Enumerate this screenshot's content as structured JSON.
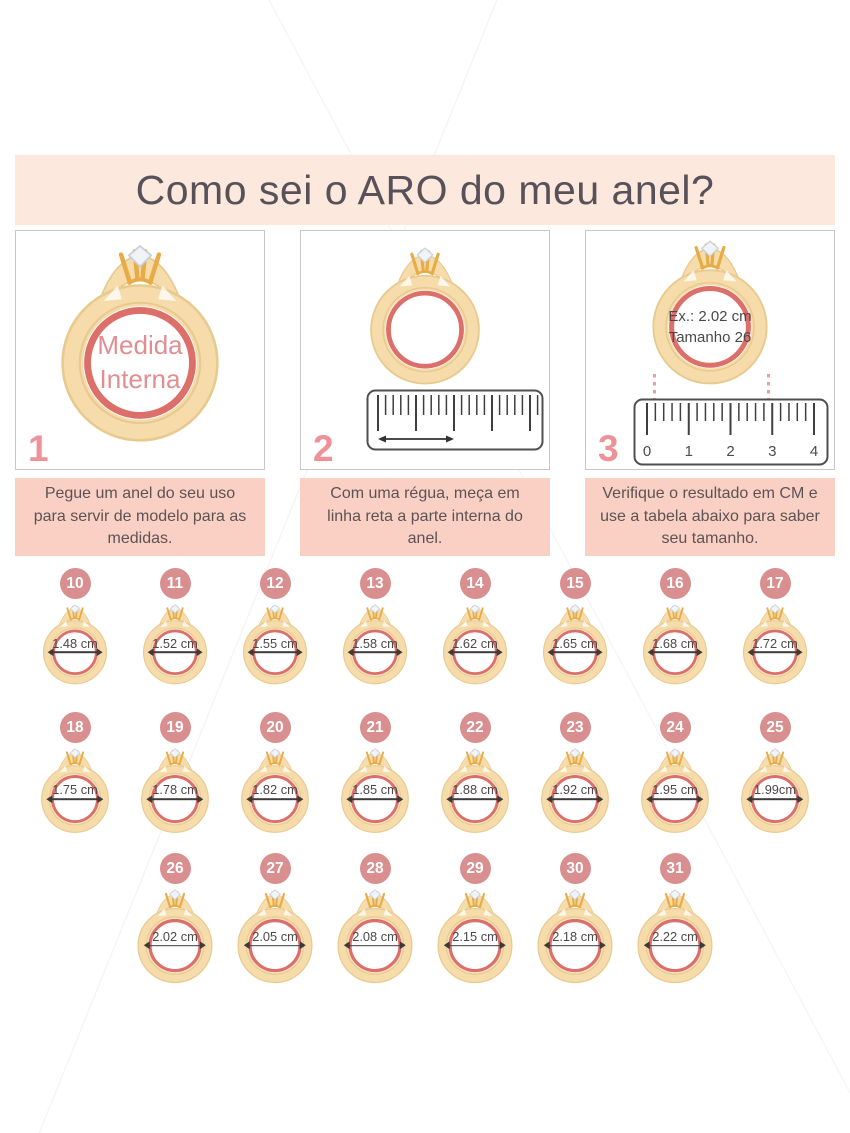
{
  "title": "Como sei o ARO do meu anel?",
  "steps": [
    {
      "number": "1",
      "ring_text": [
        "Medida",
        "Interna"
      ],
      "instruction": "Pegue um anel do seu uso para servir de modelo para as medidas."
    },
    {
      "number": "2",
      "instruction": "Com uma régua, meça em linha reta a parte interna do anel."
    },
    {
      "number": "3",
      "ring_text": [
        "Ex.: 2.02 cm",
        "Tamanho 26"
      ],
      "ruler_numbers": [
        "0",
        "1",
        "2",
        "3",
        "4"
      ],
      "instruction": "Verifique o resultado em CM e use a tabela abaixo para saber seu tamanho."
    }
  ],
  "size_chart": {
    "rows": [
      [
        {
          "size": "10",
          "diameter": "1.48 cm"
        },
        {
          "size": "11",
          "diameter": "1.52 cm"
        },
        {
          "size": "12",
          "diameter": "1.55 cm"
        },
        {
          "size": "13",
          "diameter": "1.58 cm"
        },
        {
          "size": "14",
          "diameter": "1.62 cm"
        },
        {
          "size": "15",
          "diameter": "1.65 cm"
        },
        {
          "size": "16",
          "diameter": "1.68 cm"
        },
        {
          "size": "17",
          "diameter": "1.72 cm"
        }
      ],
      [
        {
          "size": "18",
          "diameter": "1.75 cm"
        },
        {
          "size": "19",
          "diameter": "1.78 cm"
        },
        {
          "size": "20",
          "diameter": "1.82 cm"
        },
        {
          "size": "21",
          "diameter": "1.85 cm"
        },
        {
          "size": "22",
          "diameter": "1.88 cm"
        },
        {
          "size": "23",
          "diameter": "1.92 cm"
        },
        {
          "size": "24",
          "diameter": "1.95 cm"
        },
        {
          "size": "25",
          "diameter": "1.99cm"
        }
      ],
      [
        {
          "size": "26",
          "diameter": "2.02 cm"
        },
        {
          "size": "27",
          "diameter": "2.05 cm"
        },
        {
          "size": "28",
          "diameter": "2.08 cm"
        },
        {
          "size": "29",
          "diameter": "2.15 cm"
        },
        {
          "size": "30",
          "diameter": "2.18 cm"
        },
        {
          "size": "31",
          "diameter": "2.22 cm"
        }
      ]
    ]
  },
  "colors": {
    "header_bg": "#fce8dc",
    "instruction_bg": "#f9d0c3",
    "accent_pink": "#ee9298",
    "badge_pink": "#d98e90",
    "ring_gold": "#f5dcaa",
    "ring_gold_edge": "#e8c98e",
    "ring_inner_stroke": "#dd6f6b",
    "title_text": "#57525a",
    "body_text": "#5c5355"
  }
}
